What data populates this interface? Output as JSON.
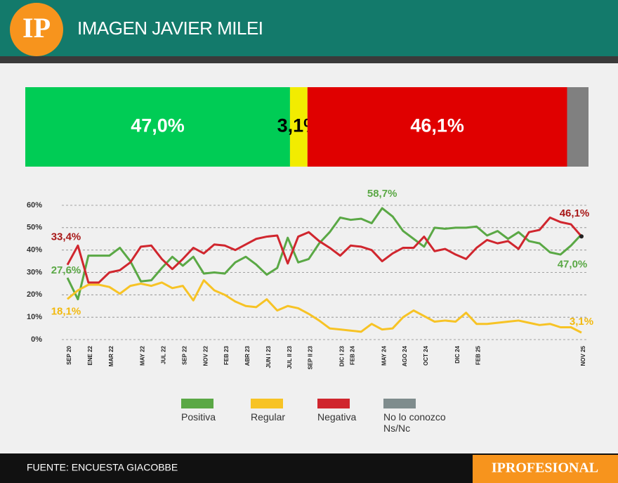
{
  "header": {
    "logo": "IP",
    "title": "IMAGEN JAVIER MILEI"
  },
  "footer": {
    "source": "FUENTE: ENCUESTA GIACOBBE",
    "brand": "IPROFESIONAL"
  },
  "chart_data": [
    {
      "type": "bar",
      "orientation": "horizontal",
      "stacked": true,
      "xlim": [
        0,
        100
      ],
      "series": [
        {
          "name": "Positiva",
          "color": "#00cc55",
          "legend_color": "#5aa845",
          "label_color": "#ffffff",
          "values": [
            47.0
          ],
          "value_labels": [
            "47,0%"
          ]
        },
        {
          "name": "Regular",
          "color": "#f2ec00",
          "legend_color": "#f7c325",
          "label_color": "#000000",
          "values": [
            3.1
          ],
          "value_labels": [
            "3,1%"
          ]
        },
        {
          "name": "Negativa",
          "color": "#e00000",
          "legend_color": "#d0262e",
          "label_color": "#ffffff",
          "values": [
            46.1
          ],
          "value_labels": [
            "46,1%"
          ]
        },
        {
          "name": "No lo conozco Ns/Nc",
          "color": "#808080",
          "legend_color": "#7f8c8d",
          "values": [
            3.8
          ],
          "value_labels": [
            null
          ]
        }
      ]
    },
    {
      "type": "line",
      "ylim": [
        0,
        60
      ],
      "grid": true,
      "yticks": [
        {
          "value": 0,
          "label": "0%"
        },
        {
          "value": 10,
          "label": "10%"
        },
        {
          "value": 20,
          "label": "20%"
        },
        {
          "value": 30,
          "label": "30%"
        },
        {
          "value": 40,
          "label": "40%"
        },
        {
          "value": 50,
          "label": "50%"
        },
        {
          "value": 60,
          "label": "60%"
        }
      ],
      "categories": [
        "SEP 20",
        null,
        "ENE 22",
        null,
        "MAR 22",
        null,
        null,
        "MAY 22",
        null,
        "JUL 22",
        null,
        "SEP 22",
        null,
        "NOV 22",
        null,
        "FEB 23",
        null,
        "ABR 23",
        null,
        "JUN I 23",
        null,
        "JUL II 23",
        null,
        "SEP II 23",
        null,
        null,
        "DIC I 23",
        "FEB 24",
        null,
        null,
        "MAY 24",
        null,
        "AGO 24",
        null,
        "OCT 24",
        null,
        null,
        "DIC 24",
        null,
        "FEB 25",
        null,
        null,
        null,
        null,
        null,
        null,
        null,
        null,
        null,
        "NOV 25"
      ],
      "series": [
        {
          "color": "#5aa845",
          "label_color": "#5aa845",
          "values": [
            27.6,
            18,
            37.5,
            37.5,
            37.5,
            41,
            35,
            26,
            26.5,
            32,
            37,
            33,
            37,
            29.5,
            30,
            29.5,
            34.5,
            37,
            33.5,
            29,
            32,
            45.5,
            34.5,
            36,
            43,
            48,
            54.5,
            53.5,
            54,
            52,
            58.7,
            55,
            48.5,
            45,
            41.5,
            50,
            49.5,
            50,
            50,
            50.5,
            46.5,
            48.5,
            45,
            48,
            44,
            43,
            39,
            38,
            42,
            47.0
          ],
          "value_labels": [
            "27,6%",
            null,
            null,
            null,
            null,
            null,
            null,
            null,
            null,
            null,
            null,
            null,
            null,
            null,
            null,
            null,
            null,
            null,
            null,
            null,
            null,
            null,
            null,
            null,
            null,
            null,
            null,
            null,
            null,
            null,
            "58,7%",
            null,
            null,
            null,
            null,
            null,
            null,
            null,
            null,
            null,
            null,
            null,
            null,
            null,
            null,
            null,
            null,
            null,
            null,
            "47,0%"
          ]
        },
        {
          "color": "#f7c325",
          "label_color": "#f2b90f",
          "values": [
            18.1,
            22,
            24.5,
            24.5,
            23.5,
            20.5,
            24,
            25,
            24,
            25.5,
            23,
            24,
            17.5,
            26.5,
            22,
            20,
            17,
            15,
            14.5,
            18,
            13,
            15,
            14,
            11.5,
            8.5,
            5,
            4.5,
            4,
            3.5,
            7,
            4.5,
            5,
            10,
            13,
            10.5,
            8,
            8.5,
            8,
            12,
            7,
            7,
            7.5,
            8,
            8.5,
            7.5,
            6.5,
            7,
            5.5,
            5.5,
            3.1
          ],
          "value_labels": [
            "18,1%",
            null,
            null,
            null,
            null,
            null,
            null,
            null,
            null,
            null,
            null,
            null,
            null,
            null,
            null,
            null,
            null,
            null,
            null,
            null,
            null,
            null,
            null,
            null,
            null,
            null,
            null,
            null,
            null,
            null,
            null,
            null,
            null,
            null,
            null,
            null,
            null,
            null,
            null,
            null,
            null,
            null,
            null,
            null,
            null,
            null,
            null,
            null,
            null,
            "3,1%"
          ]
        },
        {
          "color": "#d0262e",
          "label_color": "#a81818",
          "values": [
            33.4,
            42,
            25.5,
            25.5,
            30,
            31,
            34.5,
            41.5,
            42,
            36,
            31.5,
            36,
            41,
            38.5,
            42.5,
            42,
            40,
            42.5,
            45,
            46,
            46.5,
            34,
            46,
            48,
            44,
            41,
            37.5,
            42,
            41.5,
            40,
            35,
            38.5,
            41,
            41,
            46,
            39.5,
            40.5,
            38,
            36,
            41,
            44.5,
            43,
            44,
            40.5,
            48,
            49,
            54.5,
            52.5,
            51.5,
            46.1
          ],
          "value_labels": [
            "33,4%",
            null,
            null,
            null,
            null,
            null,
            null,
            null,
            null,
            null,
            null,
            null,
            null,
            null,
            null,
            null,
            null,
            null,
            null,
            null,
            null,
            null,
            null,
            null,
            null,
            null,
            null,
            null,
            null,
            null,
            null,
            null,
            null,
            null,
            null,
            null,
            null,
            null,
            null,
            null,
            null,
            null,
            null,
            null,
            null,
            null,
            null,
            null,
            null,
            "46,1%"
          ]
        }
      ]
    }
  ]
}
